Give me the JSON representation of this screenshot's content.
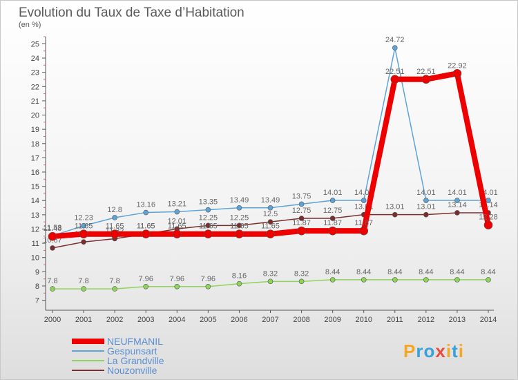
{
  "title": "Evolution du Taux de Taxe d’Habitation",
  "subtitle": "(en %)",
  "logo": {
    "text": "Proxiti",
    "colors": [
      "#f5a623",
      "#3aa0d8",
      "#3aa0d8",
      "#e84a3c",
      "#f5a623",
      "#3aa0d8",
      "#f5a623"
    ]
  },
  "chart_data": {
    "type": "line",
    "categories": [
      "2000",
      "2001",
      "2002",
      "2003",
      "2004",
      "2005",
      "2006",
      "2007",
      "2008",
      "2009",
      "2010",
      "2011",
      "2012",
      "2013",
      "2014"
    ],
    "ylim": [
      7,
      25
    ],
    "yticks": [
      7,
      8,
      9,
      10,
      11,
      12,
      13,
      14,
      15,
      16,
      17,
      18,
      19,
      20,
      21,
      22,
      23,
      24,
      25
    ],
    "grid": false,
    "legend_position": "bottom-left",
    "series": [
      {
        "name": "Nouzonville",
        "color": "#7a2e2e",
        "values": [
          10.67,
          11.09,
          11.32,
          11.65,
          12.01,
          12.25,
          12.25,
          12.5,
          12.75,
          12.75,
          13.01,
          13.01,
          13.01,
          13.14,
          13.14
        ],
        "labels": [
          "10.67",
          "11.09",
          "11.32",
          "11.65",
          "12.01",
          "12.25",
          "12.25",
          "12.5",
          "12.75",
          "12.75",
          "13.01",
          "13.01",
          "13.01",
          "13.14",
          "13.14"
        ]
      },
      {
        "name": "La Grandville",
        "color": "#8fd45a",
        "values": [
          7.8,
          7.8,
          7.8,
          7.96,
          7.96,
          7.96,
          8.16,
          8.32,
          8.32,
          8.44,
          8.44,
          8.44,
          8.44,
          8.44,
          8.44
        ],
        "labels": [
          "7.8",
          "7.8",
          "7.8",
          "7.96",
          "7.96",
          "7.96",
          "8.16",
          "8.32",
          "8.32",
          "8.44",
          "8.44",
          "8.44",
          "8.44",
          "8.44",
          "8.44"
        ]
      },
      {
        "name": "Gespunsart",
        "color": "#5ea3d6",
        "values": [
          11.53,
          12.23,
          12.8,
          13.16,
          13.21,
          13.35,
          13.49,
          13.49,
          13.75,
          14.01,
          14.01,
          24.72,
          14.01,
          14.01,
          14.01
        ],
        "labels": [
          "11.53",
          "12.23",
          "12.8",
          "13.16",
          "13.21",
          "13.35",
          "13.49",
          "13.49",
          "13.75",
          "14.01",
          "14.01",
          "24.72",
          "14.01",
          "14.01",
          "14.01"
        ]
      },
      {
        "name": "NEUFMANIL",
        "color": "#ee0000",
        "values": [
          11.48,
          11.65,
          11.65,
          11.65,
          11.65,
          11.65,
          11.65,
          11.65,
          11.87,
          11.87,
          11.87,
          22.51,
          22.51,
          22.92,
          12.28
        ],
        "labels": [
          "11.48",
          "11.65",
          "11.65",
          "11.65",
          "11.65",
          "11.65",
          "11.65",
          "11.65",
          "11.87",
          "11.87",
          "11.87",
          "22.51",
          "22.51",
          "22.92",
          "12.28"
        ]
      }
    ],
    "legend": [
      "NEUFMANIL",
      "Gespunsart",
      "La Grandville",
      "Nouzonville"
    ]
  }
}
